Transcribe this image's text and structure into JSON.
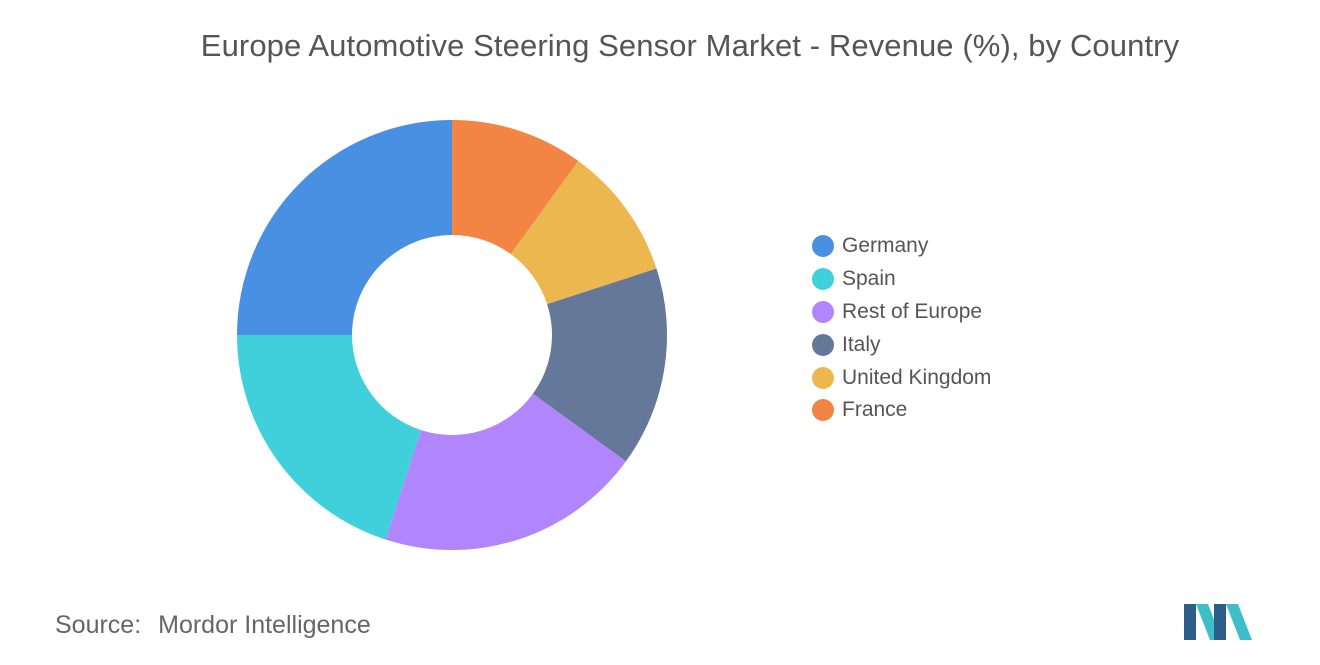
{
  "chart_data": {
    "type": "pie",
    "title": "Europe Automotive Steering Sensor Market - Revenue (%), by Country",
    "donut": true,
    "slices": [
      {
        "label": "France",
        "value": 10,
        "color": "#F28444"
      },
      {
        "label": "United Kingdom",
        "value": 10,
        "color": "#EBB74E"
      },
      {
        "label": "Italy",
        "value": 15,
        "color": "#667899"
      },
      {
        "label": "Rest of Europe",
        "value": 20,
        "color": "#B185FC"
      },
      {
        "label": "Spain",
        "value": 20,
        "color": "#3FD0DB"
      },
      {
        "label": "Germany",
        "value": 25,
        "color": "#4A90E2"
      }
    ],
    "legend": {
      "placement": "right",
      "items": [
        {
          "label": "Germany",
          "color": "#4A90E2"
        },
        {
          "label": "Spain",
          "color": "#3FD0DB"
        },
        {
          "label": "Rest of Europe",
          "color": "#B185FC"
        },
        {
          "label": "Italy",
          "color": "#667899"
        },
        {
          "label": "United Kingdom",
          "color": "#EBB74E"
        },
        {
          "label": "France",
          "color": "#F28444"
        }
      ]
    }
  },
  "footer": {
    "source_label": "Source:",
    "source_value": "Mordor Intelligence"
  },
  "logo": {
    "icon": "mordor-intelligence-logo-icon",
    "colors": [
      "#2F5D8A",
      "#3DBEC9"
    ]
  }
}
